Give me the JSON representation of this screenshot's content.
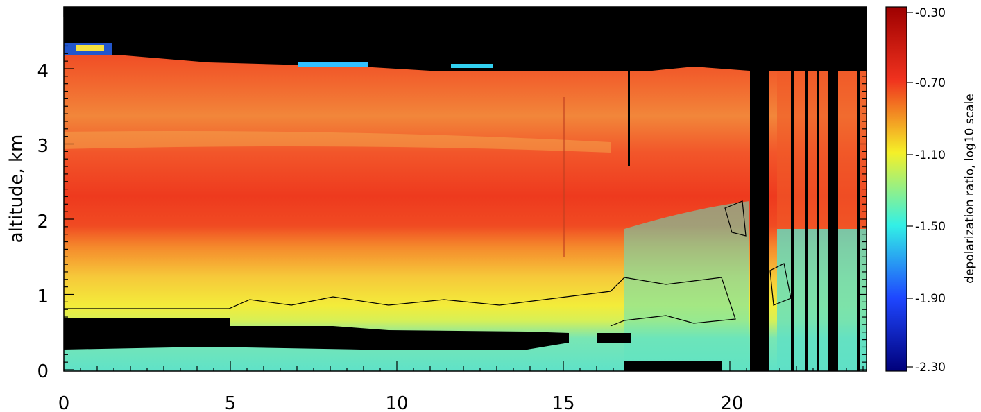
{
  "chart_data": {
    "type": "heatmap",
    "title": "",
    "xlabel": "",
    "ylabel": "altitude, km",
    "xlim": [
      0,
      24.1
    ],
    "ylim": [
      0,
      4.85
    ],
    "x_ticks": [
      "0",
      "5",
      "10",
      "15",
      "20"
    ],
    "y_ticks": [
      "0",
      "1",
      "2",
      "3",
      "4"
    ],
    "colorbar": {
      "label": "depolarization ratio, log10 scale",
      "range": [
        -2.3,
        -0.3
      ],
      "ticks": [
        "-0.30",
        "-0.70",
        "-1.10",
        "-1.50",
        "-1.90",
        "-2.30"
      ],
      "colormap": "rainbow (dark blue → cyan → yellow → red → dark red)"
    },
    "layers": [
      {
        "region": "top, no data",
        "y_range": [
          4.1,
          4.85
        ],
        "x_range": [
          0,
          24.1
        ],
        "value": null,
        "color": "#000000"
      },
      {
        "region": "upper aerosol layer",
        "y_range": [
          3.6,
          4.05
        ],
        "x_range": [
          0,
          20.6
        ],
        "value": -0.62
      },
      {
        "region": "elevated slightly lower ratio band",
        "y_range": [
          2.9,
          3.6
        ],
        "x_range": [
          0,
          17
        ],
        "value": -0.75
      },
      {
        "region": "strong depolarizing layer",
        "y_range": [
          2.0,
          2.9
        ],
        "x_range": [
          0,
          20.6
        ],
        "value": -0.6
      },
      {
        "region": "transition layer",
        "y_range": [
          1.4,
          2.0
        ],
        "x_range": [
          0,
          20.6
        ],
        "value": -0.95
      },
      {
        "region": "lower yellow layer",
        "y_range": [
          0.8,
          1.4
        ],
        "x_range": [
          0,
          17
        ],
        "value": -1.15
      },
      {
        "region": "near-surface cyan layer",
        "y_range": [
          0,
          0.8
        ],
        "x_range": [
          0,
          24.1
        ],
        "value": -1.4
      },
      {
        "region": "low cloud / no data",
        "y_range": [
          0.3,
          0.7
        ],
        "x_range": [
          0,
          14.3
        ],
        "value": null,
        "color": "#000000"
      },
      {
        "region": "data gap",
        "y_range": [
          0,
          4.85
        ],
        "x_range": [
          20.6,
          21.2
        ],
        "value": null,
        "color": "#000000"
      },
      {
        "region": "data gap",
        "y_range": [
          0,
          4.85
        ],
        "x_range": [
          22.8,
          23.1
        ],
        "value": null,
        "color": "#000000"
      }
    ]
  },
  "colors": {
    "nodata": "#000000",
    "dark_red": "#9e0000",
    "red": "#f0321e",
    "orange": "#f58c28",
    "yellow": "#f5f028",
    "cyan": "#32f0e6",
    "blue": "#1e46ff",
    "dark_blue": "#00007a"
  }
}
